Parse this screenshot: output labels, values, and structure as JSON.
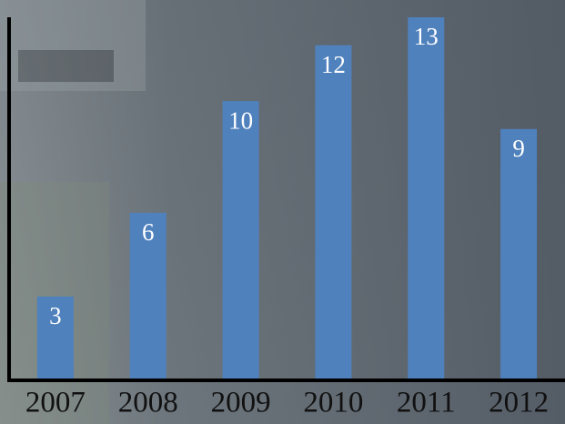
{
  "chart_data": {
    "type": "bar",
    "categories": [
      "2007",
      "2008",
      "2009",
      "2010",
      "2011",
      "2012"
    ],
    "values": [
      3,
      6,
      10,
      12,
      13,
      9
    ],
    "color": "#4f81bd",
    "ylim": [
      0,
      13
    ]
  }
}
